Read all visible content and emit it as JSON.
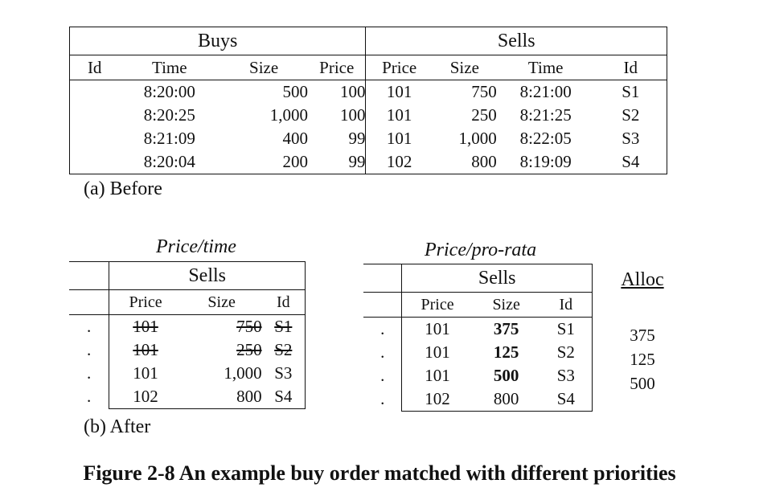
{
  "before": {
    "buys_label": "Buys",
    "sells_label": "Sells",
    "buy_headers": [
      "Id",
      "Time",
      "Size",
      "Price"
    ],
    "sell_headers": [
      "Price",
      "Size",
      "Time",
      "Id"
    ],
    "buy_rows": [
      {
        "id": "",
        "time": "8:20:00",
        "size": "500",
        "price": "100"
      },
      {
        "id": "",
        "time": "8:20:25",
        "size": "1,000",
        "price": "100"
      },
      {
        "id": "",
        "time": "8:21:09",
        "size": "400",
        "price": "99"
      },
      {
        "id": "",
        "time": "8:20:04",
        "size": "200",
        "price": "99"
      }
    ],
    "sell_rows": [
      {
        "price": "101",
        "size": "750",
        "time": "8:21:00",
        "id": "S1"
      },
      {
        "price": "101",
        "size": "250",
        "time": "8:21:25",
        "id": "S2"
      },
      {
        "price": "101",
        "size": "1,000",
        "time": "8:22:05",
        "id": "S3"
      },
      {
        "price": "102",
        "size": "800",
        "time": "8:19:09",
        "id": "S4"
      }
    ],
    "caption": "(a) Before"
  },
  "after": {
    "price_time": {
      "title": "Price/time",
      "sells_label": "Sells",
      "headers": [
        "Price",
        "Size",
        "Id"
      ],
      "rows": [
        {
          "lead": ".",
          "price": "101",
          "size": "750",
          "id": "S1"
        },
        {
          "lead": ".",
          "price": "101",
          "size": "250",
          "id": "S2"
        },
        {
          "lead": ".",
          "price": "101",
          "size": "1,000",
          "id": "S3"
        },
        {
          "lead": ".",
          "price": "102",
          "size": "800",
          "id": "S4"
        }
      ]
    },
    "price_pro_rata": {
      "title": "Price/pro-rata",
      "sells_label": "Sells",
      "headers": [
        "Price",
        "Size",
        "Id"
      ],
      "rows": [
        {
          "lead": ".",
          "price": "101",
          "size": "375",
          "id": "S1"
        },
        {
          "lead": ".",
          "price": "101",
          "size": "125",
          "id": "S2"
        },
        {
          "lead": ".",
          "price": "101",
          "size": "500",
          "id": "S3"
        },
        {
          "lead": ".",
          "price": "102",
          "size": "800",
          "id": "S4"
        }
      ]
    },
    "alloc": {
      "label": "Alloc",
      "values": [
        "375",
        "125",
        "500"
      ]
    },
    "caption": "(b) After"
  },
  "figure_title": "Figure 2-8 An example buy order matched with different priorities"
}
